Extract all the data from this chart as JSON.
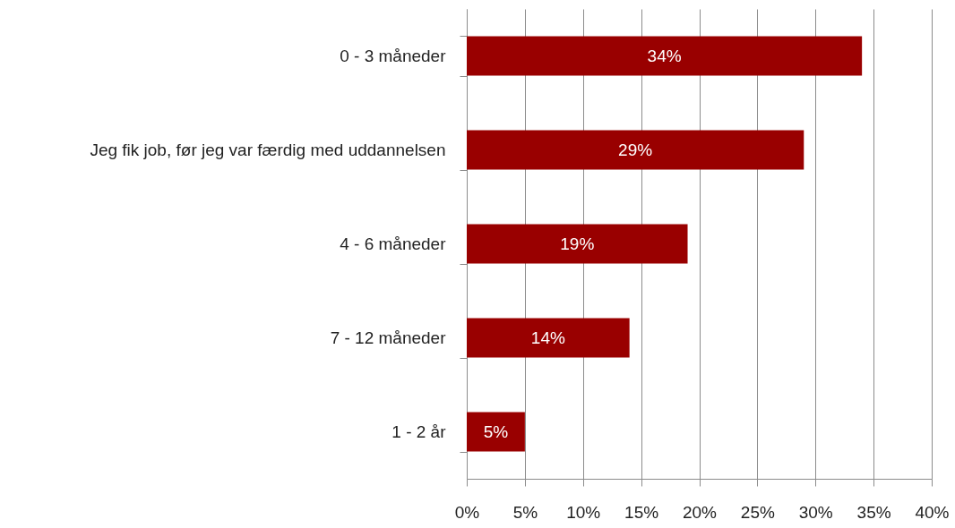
{
  "chart_data": {
    "type": "bar",
    "orientation": "horizontal",
    "categories": [
      "0 - 3 måneder",
      "Jeg fik job, før jeg var færdig med uddannelsen",
      "4 - 6 måneder",
      "7 - 12 måneder",
      "1 - 2 år"
    ],
    "values": [
      34,
      29,
      19,
      14,
      5
    ],
    "color": "#990000",
    "value_labels": [
      "34%",
      "29%",
      "19%",
      "14%",
      "5%"
    ],
    "xlim": [
      0,
      40
    ],
    "xticks": [
      {
        "value": 0,
        "label": "0%"
      },
      {
        "value": 5,
        "label": "5%"
      },
      {
        "value": 10,
        "label": "10%"
      },
      {
        "value": 15,
        "label": "15%"
      },
      {
        "value": 20,
        "label": "20%"
      },
      {
        "value": 25,
        "label": "25%"
      },
      {
        "value": 30,
        "label": "30%"
      },
      {
        "value": 35,
        "label": "35%"
      },
      {
        "value": 40,
        "label": "40%"
      }
    ],
    "grid": "x"
  }
}
